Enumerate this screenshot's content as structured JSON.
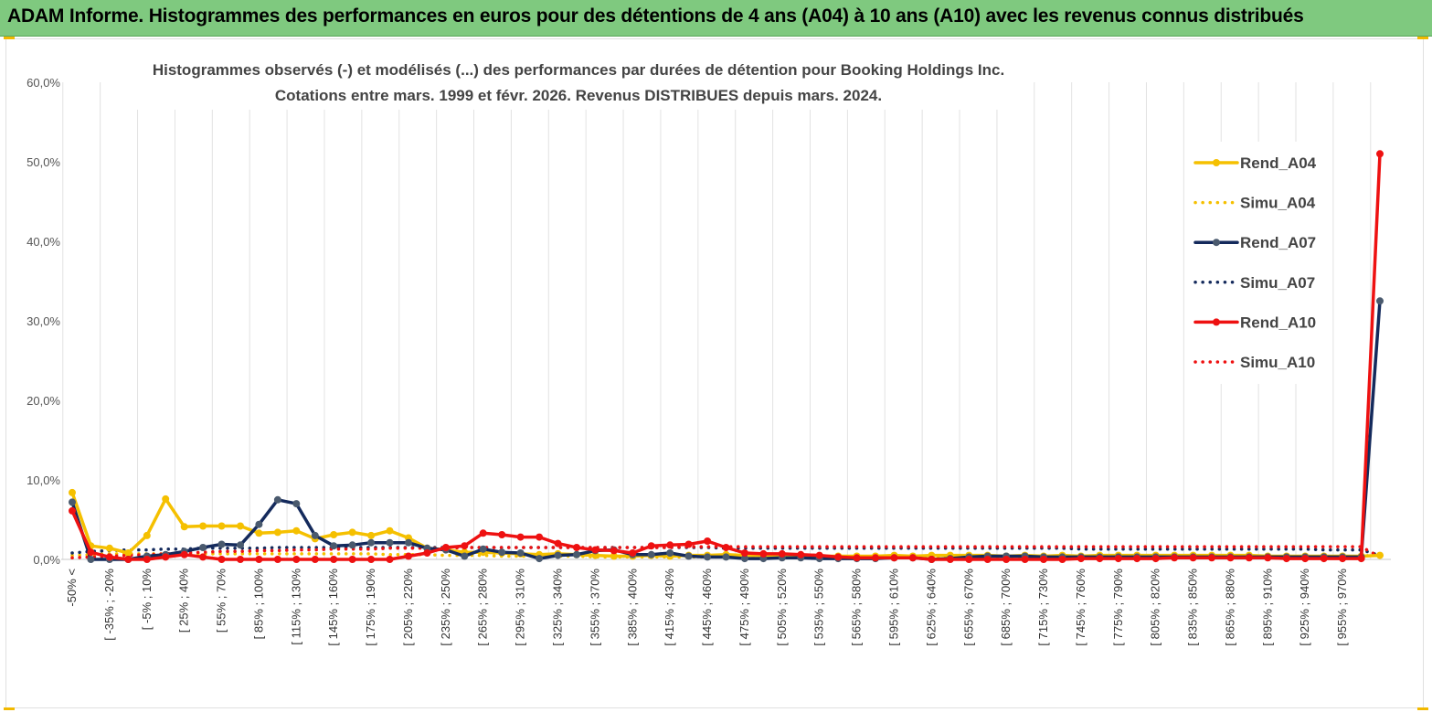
{
  "banner": {
    "title": "ADAM Informe. Histogrammes des performances en euros pour des détentions de 4 ans (A04) à 10 ans (A10) avec les revenus connus distribués"
  },
  "chart_data": {
    "type": "line",
    "title": "Histogrammes observés (-) et modélisés (...) des performances par durées de détention pour Booking Holdings Inc.",
    "subtitle": "Cotations entre mars. 1999 et févr. 2026. Revenus DISTRIBUES depuis mars. 2024.",
    "xlabel": "",
    "ylabel": "",
    "ylim": [
      0,
      60
    ],
    "yticks": [
      "0,0%",
      "10,0%",
      "20,0%",
      "30,0%",
      "40,0%",
      "50,0%",
      "60,0%"
    ],
    "grid": "vertical",
    "legend_position": "right",
    "x_tick_labels": [
      "-50% <",
      "[ -35% ; -20%",
      "[ -5% ; 10%",
      "[ 25% ; 40%",
      "[ 55% ; 70%",
      "[ 85% ; 100%",
      "[ 115% ; 130%",
      "[ 145% ; 160%",
      "[ 175% ; 190%",
      "[ 205% ; 220%",
      "[ 235% ; 250%",
      "[ 265% ; 280%",
      "[ 295% ; 310%",
      "[ 325% ; 340%",
      "[ 355% ; 370%",
      "[ 385% ; 400%",
      "[ 415% ; 430%",
      "[ 445% ; 460%",
      "[ 475% ; 490%",
      "[ 505% ; 520%",
      "[ 535% ; 550%",
      "[ 565% ; 580%",
      "[ 595% ; 610%",
      "[ 625% ; 640%",
      "[ 655% ; 670%",
      "[ 685% ; 700%",
      "[ 715% ; 730%",
      "[ 745% ; 760%",
      "[ 775% ; 790%",
      "[ 805% ; 820%",
      "[ 835% ; 850%",
      "[ 865% ; 880%",
      "[ 895% ; 910%",
      "[ 925% ; 940%",
      "[ 955% ; 970%"
    ],
    "series": [
      {
        "name": "Rend_A04",
        "color": "#f5c000",
        "style": "solid",
        "marker": true,
        "values": [
          8.4,
          1.7,
          1.4,
          0.8,
          3.0,
          7.6,
          4.1,
          4.2,
          4.2,
          4.2,
          3.3,
          3.4,
          3.6,
          2.6,
          3.1,
          3.4,
          3.0,
          3.6,
          2.7,
          1.4,
          1.2,
          0.9,
          0.9,
          0.8,
          0.7,
          0.6,
          0.7,
          0.6,
          0.5,
          0.4,
          0.4,
          0.5,
          0.4,
          0.5,
          0.5,
          0.6,
          0.5,
          0.5,
          0.4,
          0.4,
          0.4,
          0.4,
          0.4,
          0.4,
          0.5,
          0.4,
          0.5,
          0.5,
          0.5,
          0.5,
          0.4,
          0.5,
          0.4,
          0.5,
          0.4,
          0.5,
          0.5,
          0.5,
          0.5,
          0.5,
          0.5,
          0.5,
          0.5,
          0.5,
          0.4,
          0.4,
          0.4,
          0.4,
          0.4,
          0.4,
          0.5
        ]
      },
      {
        "name": "Simu_A04",
        "color": "#f5c000",
        "style": "dotted",
        "marker": false,
        "values": [
          0.5,
          0.6,
          0.7,
          0.7,
          0.7,
          0.7,
          0.7,
          0.7,
          0.7,
          0.7,
          0.7,
          0.7,
          0.7,
          0.7,
          0.7,
          0.7,
          0.7,
          0.6,
          0.6,
          0.6,
          0.5,
          0.5,
          0.5,
          0.4,
          0.4,
          0.4,
          0.4,
          0.4,
          0.3,
          0.3,
          0.3,
          0.3,
          0.3,
          0.3,
          0.3,
          0.3,
          0.3,
          0.3,
          0.3,
          0.3,
          0.3,
          0.3,
          0.3,
          0.3,
          0.3,
          0.3,
          0.3,
          0.3,
          0.3,
          0.3,
          0.3,
          0.3,
          0.3,
          0.3,
          0.3,
          0.3,
          0.3,
          0.3,
          0.3,
          0.3,
          0.3,
          0.3,
          0.3,
          0.3,
          0.3,
          0.3,
          0.3,
          0.3,
          0.3,
          0.3,
          0.8
        ]
      },
      {
        "name": "Rend_A07",
        "color": "#142a5c",
        "style": "solid",
        "marker": true,
        "values": [
          7.2,
          0.0,
          0.0,
          0.0,
          0.4,
          0.6,
          1.0,
          1.5,
          1.9,
          1.8,
          4.4,
          7.5,
          7.0,
          3.0,
          1.7,
          1.8,
          2.1,
          2.1,
          2.1,
          1.4,
          1.2,
          0.4,
          1.3,
          0.9,
          0.8,
          0.1,
          0.5,
          0.6,
          1.1,
          1.2,
          0.6,
          0.6,
          0.8,
          0.4,
          0.3,
          0.3,
          0.1,
          0.1,
          0.2,
          0.2,
          0.1,
          0.1,
          0.1,
          0.1,
          0.2,
          0.2,
          0.0,
          0.1,
          0.3,
          0.4,
          0.4,
          0.4,
          0.3,
          0.3,
          0.3,
          0.3,
          0.3,
          0.3,
          0.3,
          0.3,
          0.3,
          0.3,
          0.3,
          0.3,
          0.3,
          0.3,
          0.3,
          0.3,
          0.3,
          0.3,
          32.5
        ]
      },
      {
        "name": "Simu_A07",
        "color": "#142a5c",
        "style": "dotted",
        "marker": false,
        "values": [
          0.8,
          1.0,
          1.1,
          1.2,
          1.2,
          1.3,
          1.3,
          1.4,
          1.4,
          1.4,
          1.4,
          1.5,
          1.5,
          1.5,
          1.5,
          1.5,
          1.5,
          1.5,
          1.5,
          1.5,
          1.5,
          1.5,
          1.5,
          1.5,
          1.5,
          1.5,
          1.5,
          1.5,
          1.5,
          1.5,
          1.5,
          1.5,
          1.5,
          1.5,
          1.5,
          1.4,
          1.4,
          1.4,
          1.4,
          1.4,
          1.4,
          1.4,
          1.4,
          1.4,
          1.4,
          1.4,
          1.4,
          1.4,
          1.4,
          1.4,
          1.4,
          1.4,
          1.4,
          1.4,
          1.3,
          1.3,
          1.3,
          1.3,
          1.3,
          1.3,
          1.3,
          1.3,
          1.3,
          1.3,
          1.3,
          1.3,
          1.3,
          1.2,
          1.2,
          1.2,
          0.5
        ]
      },
      {
        "name": "Rend_A10",
        "color": "#ee1111",
        "style": "solid",
        "marker": true,
        "values": [
          6.1,
          0.9,
          0.3,
          0.0,
          0.0,
          0.3,
          0.6,
          0.3,
          0.0,
          0.0,
          0.0,
          0.0,
          0.0,
          0.0,
          0.0,
          0.0,
          0.0,
          0.0,
          0.4,
          0.8,
          1.5,
          1.7,
          3.3,
          3.1,
          2.8,
          2.8,
          2.0,
          1.5,
          1.2,
          1.1,
          0.8,
          1.7,
          1.8,
          1.9,
          2.3,
          1.5,
          0.8,
          0.7,
          0.7,
          0.6,
          0.5,
          0.3,
          0.2,
          0.2,
          0.2,
          0.2,
          0.0,
          0.0,
          0.0,
          0.0,
          0.0,
          0.0,
          0.0,
          0.0,
          0.1,
          0.1,
          0.1,
          0.1,
          0.1,
          0.2,
          0.2,
          0.2,
          0.2,
          0.2,
          0.2,
          0.1,
          0.1,
          0.1,
          0.1,
          0.1,
          51.0
        ]
      },
      {
        "name": "Simu_A10",
        "color": "#ee1111",
        "style": "dotted",
        "marker": false,
        "values": [
          0.2,
          0.3,
          0.4,
          0.5,
          0.6,
          0.7,
          0.8,
          0.9,
          1.0,
          1.0,
          1.1,
          1.1,
          1.2,
          1.2,
          1.3,
          1.3,
          1.3,
          1.4,
          1.4,
          1.4,
          1.4,
          1.5,
          1.5,
          1.5,
          1.5,
          1.5,
          1.5,
          1.5,
          1.5,
          1.5,
          1.5,
          1.5,
          1.5,
          1.6,
          1.6,
          1.6,
          1.6,
          1.6,
          1.6,
          1.6,
          1.6,
          1.6,
          1.6,
          1.6,
          1.6,
          1.6,
          1.6,
          1.6,
          1.6,
          1.6,
          1.6,
          1.6,
          1.6,
          1.6,
          1.6,
          1.6,
          1.6,
          1.6,
          1.6,
          1.6,
          1.6,
          1.6,
          1.6,
          1.6,
          1.6,
          1.6,
          1.6,
          1.6,
          1.6,
          1.6,
          0.3
        ]
      }
    ]
  }
}
